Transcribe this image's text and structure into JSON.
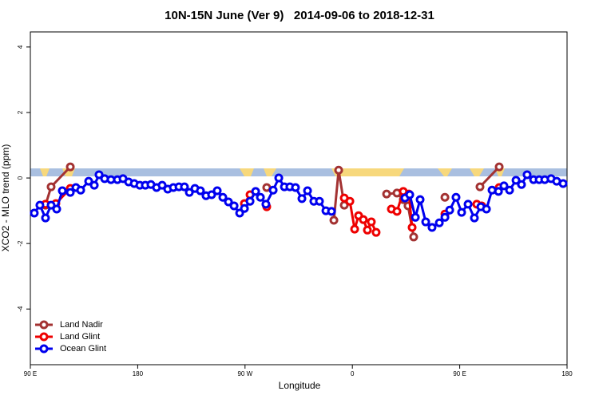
{
  "chart_data": {
    "type": "line",
    "title": "10N-15N June (Ver 9)   2014-09-06 to 2018-12-31",
    "xlabel": "Longitude",
    "ylabel": "XCO2 - MLO trend (ppm)",
    "xlim": [
      90,
      540
    ],
    "xticks": [
      {
        "value": 90,
        "label": "90 E"
      },
      {
        "value": 180,
        "label": "180"
      },
      {
        "value": 270,
        "label": "90 W"
      },
      {
        "value": 360,
        "label": "0"
      },
      {
        "value": 450,
        "label": "90 E"
      },
      {
        "value": 540,
        "label": "180"
      }
    ],
    "ylim": [
      -5.7,
      4.46
    ],
    "yticks": [
      -4,
      -2,
      0,
      2,
      4
    ],
    "legend": "bottom-left",
    "series": [
      {
        "name": "Land Nadir",
        "color": "#a33232",
        "x": [
          102.7,
          107.4,
          123.5,
          null,
          288.2,
          null,
          344.5,
          348.5,
          353.2,
          null,
          388.7,
          397.4,
          402.7,
          406.7,
          411.4,
          null,
          437.6,
          null,
          467,
          483.1
        ],
        "values": [
          -0.83,
          -0.27,
          0.34,
          null,
          -0.29,
          null,
          -1.29,
          0.24,
          -0.83,
          null,
          -0.49,
          -0.46,
          -0.66,
          -0.85,
          -1.8,
          null,
          -0.59,
          null,
          -0.27,
          0.34
        ]
      },
      {
        "name": "Land Glint",
        "color": "#ee0000",
        "x": [
          102.7,
          111.4,
          123.5,
          null,
          269.5,
          274.2,
          null,
          288.2,
          null,
          353.2,
          357.9,
          361.9,
          365.2,
          369.2,
          372.6,
          375.9,
          379.9,
          null,
          392.7,
          397.4,
          402.7,
          407.4,
          410.1,
          null,
          437.6,
          null,
          464.3,
          468.4,
          null,
          483.1
        ],
        "values": [
          -0.8,
          -0.78,
          -0.32,
          null,
          -0.78,
          -0.51,
          null,
          -0.88,
          null,
          -0.61,
          -0.71,
          -1.56,
          -1.15,
          -1.27,
          -1.59,
          -1.34,
          -1.66,
          null,
          -0.95,
          -1.02,
          -0.41,
          -0.49,
          -1.51,
          null,
          -1.1,
          null,
          -0.8,
          -0.85,
          null,
          -0.29
        ]
      },
      {
        "name": "Ocean Glint",
        "color": "#0000ee",
        "x": [
          93.3,
          98,
          102.7,
          107.4,
          112.1,
          116.8,
          123.5,
          128.2,
          132.2,
          138.9,
          143.6,
          147.6,
          152.3,
          157.6,
          163,
          167.7,
          172.4,
          177.1,
          181.8,
          186.4,
          191.1,
          195.8,
          200.5,
          205.2,
          209.9,
          214.6,
          219.2,
          223.3,
          228,
          232.6,
          237.3,
          242,
          246.7,
          251.4,
          256.1,
          260.8,
          265.5,
          269.5,
          274.2,
          278.9,
          282.9,
          287.5,
          293.6,
          298.3,
          303,
          307.6,
          312.3,
          317.7,
          322.4,
          327.7,
          332.4,
          337.8,
          342.5,
          null,
          404.1,
          408.1,
          412.8,
          416.8,
          421.5,
          426.8,
          432.9,
          437.6,
          441.6,
          446.9,
          451.6,
          457,
          462.3,
          467.7,
          472.4,
          477.1,
          482.5,
          487.1,
          491.8,
          497.2,
          501.8,
          506.5,
          511.9,
          516.6,
          521.3,
          526.6,
          531.3,
          536.7
        ],
        "values": [
          -1.07,
          -0.83,
          -1.22,
          -0.83,
          -0.95,
          -0.39,
          -0.44,
          -0.29,
          -0.37,
          -0.1,
          -0.22,
          0.1,
          -0.02,
          -0.05,
          -0.05,
          -0.02,
          -0.12,
          -0.17,
          -0.22,
          -0.22,
          -0.2,
          -0.29,
          -0.22,
          -0.34,
          -0.29,
          -0.27,
          -0.27,
          -0.44,
          -0.32,
          -0.39,
          -0.54,
          -0.51,
          -0.39,
          -0.59,
          -0.73,
          -0.85,
          -1.07,
          -0.93,
          -0.71,
          -0.41,
          -0.59,
          -0.8,
          -0.37,
          0,
          -0.27,
          -0.27,
          -0.29,
          -0.63,
          -0.39,
          -0.71,
          -0.71,
          -1,
          -1.02,
          null,
          -0.61,
          -0.51,
          -1.2,
          -0.66,
          -1.34,
          -1.51,
          -1.37,
          -1.2,
          -0.98,
          -0.59,
          -1.05,
          -0.8,
          -1.22,
          -0.88,
          -0.95,
          -0.37,
          -0.41,
          -0.24,
          -0.37,
          -0.07,
          -0.2,
          0.1,
          -0.05,
          -0.05,
          -0.05,
          -0.02,
          -0.1,
          -0.17
        ]
      }
    ]
  }
}
